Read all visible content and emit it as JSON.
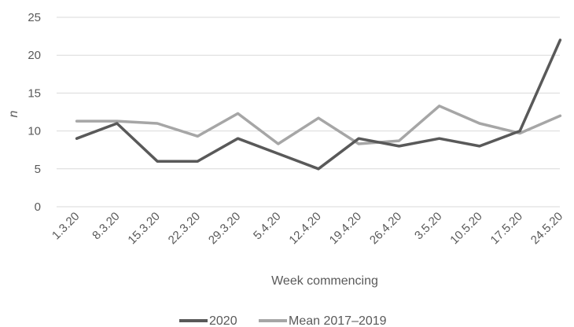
{
  "chart_data": {
    "type": "line",
    "title": "",
    "xlabel": "Week commencing",
    "ylabel": "n",
    "ylim": [
      0,
      25
    ],
    "yticks": [
      0,
      5,
      10,
      15,
      20,
      25
    ],
    "grid": "horizontal",
    "legend_position": "bottom",
    "categories": [
      "1.3.20",
      "8.3.20",
      "15.3.20",
      "22.3.20",
      "29.3.20",
      "5.4.20",
      "12.4.20",
      "19.4.20",
      "26.4.20",
      "3.5.20",
      "10.5.20",
      "17.5.20",
      "24.5.20"
    ],
    "series": [
      {
        "name": "2020",
        "color": "#595959",
        "values": [
          9,
          11,
          6,
          6,
          9,
          7,
          5,
          9,
          8,
          9,
          8,
          10,
          22
        ]
      },
      {
        "name": "Mean 2017–2019",
        "color": "#a6a6a6",
        "values": [
          11.3,
          11.3,
          11,
          9.3,
          12.3,
          8.3,
          11.7,
          8.3,
          8.7,
          13.3,
          11,
          9.7,
          12
        ]
      }
    ]
  }
}
